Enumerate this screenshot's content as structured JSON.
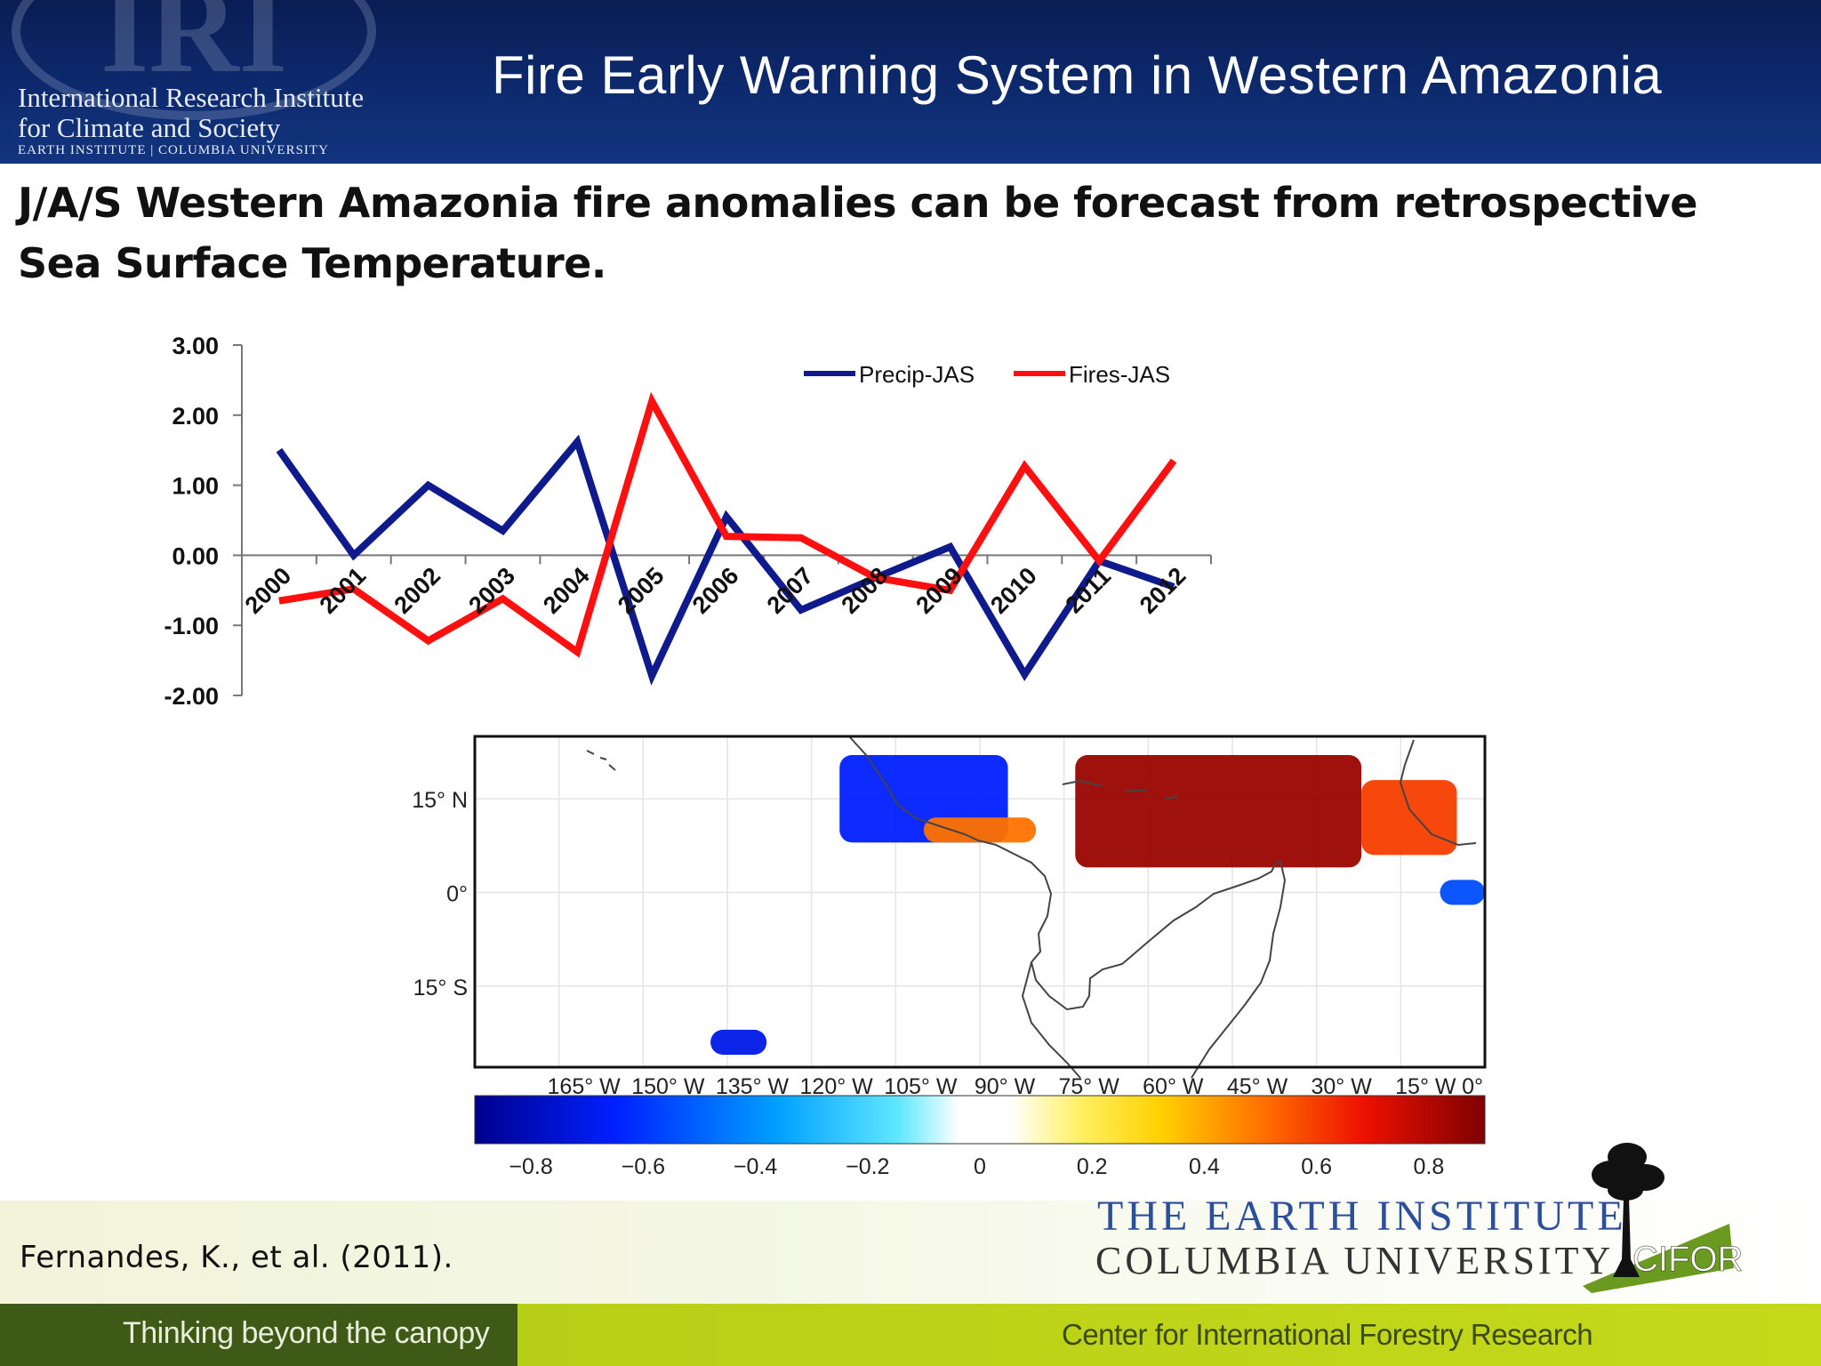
{
  "header": {
    "title": "Fire Early Warning System  in Western  Amazonia",
    "watermark": "IRI",
    "institute_line1": "International Research Institute",
    "institute_line2": "for Climate and Society",
    "institute_line3": "EARTH INSTITUTE | COLUMBIA UNIVERSITY"
  },
  "subtitle": "J/A/S Western Amazonia fire anomalies can be forecast from retrospective Sea Surface Temperature.",
  "colors": {
    "header_bg": "#0d2a6e",
    "precip": "#0f1b8c",
    "fires": "#ff1010",
    "footer_dark": "#3f5a17",
    "footer_lime": "#c4d91a"
  },
  "chart_data": [
    {
      "type": "line",
      "title": "",
      "xlabel": "",
      "ylabel": "",
      "categories": [
        "2000",
        "2001",
        "2002",
        "2003",
        "2004",
        "2005",
        "2006",
        "2007",
        "2008",
        "2009",
        "2010",
        "2011",
        "2012"
      ],
      "ylim": [
        -2,
        3
      ],
      "yticks": [
        "-2.00",
        "-1.00",
        "0.00",
        "1.00",
        "2.00",
        "3.00"
      ],
      "grid": false,
      "legend_position": "top-right",
      "series": [
        {
          "name": "Precip-JAS",
          "color": "#0f1b8c",
          "values": [
            1.5,
            0.0,
            1.0,
            0.35,
            1.62,
            -1.72,
            0.55,
            -0.78,
            -0.32,
            0.12,
            -1.7,
            -0.08,
            -0.45
          ]
        },
        {
          "name": "Fires-JAS",
          "color": "#ff1010",
          "values": [
            -0.65,
            -0.48,
            -1.22,
            -0.62,
            -1.38,
            2.2,
            0.27,
            0.25,
            -0.32,
            -0.5,
            1.27,
            -0.08,
            1.35
          ]
        }
      ]
    },
    {
      "type": "heatmap",
      "xlabel": "",
      "ylabel": "",
      "x_tick_labels": [
        "165° W",
        "150° W",
        "135° W",
        "120° W",
        "105° W",
        "90° W",
        "75° W",
        "60° W",
        "45° W",
        "30° W",
        "15° W",
        "0°"
      ],
      "y_tick_labels": [
        "15° N",
        "0°",
        "15° S"
      ],
      "colorbar_ticks": [
        "−0.8",
        "−0.6",
        "−0.4",
        "−0.2",
        "0",
        "0.2",
        "0.4",
        "0.6",
        "0.8"
      ],
      "clim": [
        -0.9,
        0.9
      ],
      "regions": [
        {
          "lon": [
            -73,
            -22
          ],
          "lat": [
            4,
            22
          ],
          "value": 0.85
        },
        {
          "lon": [
            -22,
            -5
          ],
          "lat": [
            6,
            18
          ],
          "value": 0.6
        },
        {
          "lon": [
            -115,
            -85
          ],
          "lat": [
            8,
            22
          ],
          "value": -0.65
        },
        {
          "lon": [
            -100,
            -80
          ],
          "lat": [
            8,
            12
          ],
          "value": 0.5
        },
        {
          "lon": [
            -8,
            0
          ],
          "lat": [
            -2,
            2
          ],
          "value": -0.55
        },
        {
          "lon": [
            -138,
            -128
          ],
          "lat": [
            -26,
            -22
          ],
          "value": -0.7
        }
      ]
    }
  ],
  "footer": {
    "citation": "Fernandes, K., et al. (2011).",
    "tagline": "Thinking beyond the canopy",
    "center_name": "Center for International Forestry Research",
    "earth_institute": "THE EARTH INSTITUTE",
    "columbia": "COLUMBIA UNIVERSITY",
    "cifor": "CIFOR"
  }
}
